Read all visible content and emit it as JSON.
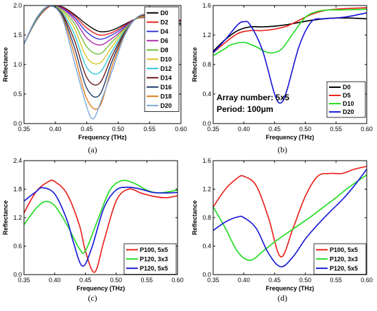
{
  "chart_data": [
    {
      "id": "a",
      "caption": "(a)",
      "type": "line",
      "xlabel": "Frequency (THz)",
      "ylabel": "Reflectance",
      "xlim": [
        0.35,
        0.6
      ],
      "ylim": [
        0,
        2
      ],
      "xticks": [
        "0.35",
        "0.40",
        "0.45",
        "0.50",
        "0.55",
        "0.60"
      ],
      "yticks": [
        "0.0",
        "0.5",
        "1.0",
        "1.5",
        "2.0"
      ],
      "legend_position": "top-right",
      "series": [
        {
          "name": "D0",
          "color": "#000000",
          "x": [
            0.35,
            0.37,
            0.39,
            0.41,
            0.43,
            0.45,
            0.47,
            0.49,
            0.51,
            0.53,
            0.55,
            0.57,
            0.6
          ],
          "y": [
            1.35,
            1.75,
            1.98,
            1.98,
            1.85,
            1.68,
            1.56,
            1.58,
            1.68,
            1.78,
            1.8,
            1.78,
            1.75
          ]
        },
        {
          "name": "D2",
          "color": "#e8231b",
          "x": [
            0.35,
            0.37,
            0.39,
            0.41,
            0.43,
            0.45,
            0.47,
            0.49,
            0.51,
            0.53,
            0.55,
            0.57,
            0.6
          ],
          "y": [
            1.35,
            1.75,
            1.98,
            1.97,
            1.83,
            1.62,
            1.5,
            1.54,
            1.66,
            1.78,
            1.8,
            1.78,
            1.75
          ]
        },
        {
          "name": "D4",
          "color": "#3a3ad6",
          "x": [
            0.35,
            0.37,
            0.39,
            0.41,
            0.43,
            0.45,
            0.47,
            0.49,
            0.51,
            0.53,
            0.55,
            0.57,
            0.6
          ],
          "y": [
            1.35,
            1.76,
            1.99,
            1.96,
            1.8,
            1.55,
            1.43,
            1.5,
            1.64,
            1.78,
            1.81,
            1.78,
            1.74
          ]
        },
        {
          "name": "D6",
          "color": "#b02aa8",
          "x": [
            0.35,
            0.37,
            0.39,
            0.41,
            0.43,
            0.45,
            0.47,
            0.49,
            0.51,
            0.53,
            0.55,
            0.57,
            0.6
          ],
          "y": [
            1.35,
            1.76,
            1.99,
            1.95,
            1.76,
            1.45,
            1.33,
            1.44,
            1.62,
            1.78,
            1.81,
            1.77,
            1.73
          ]
        },
        {
          "name": "D8",
          "color": "#6fbf3a",
          "x": [
            0.35,
            0.37,
            0.39,
            0.41,
            0.43,
            0.45,
            0.47,
            0.49,
            0.51,
            0.53,
            0.55,
            0.57,
            0.6
          ],
          "y": [
            1.35,
            1.76,
            1.99,
            1.93,
            1.7,
            1.3,
            1.18,
            1.38,
            1.6,
            1.78,
            1.82,
            1.76,
            1.72
          ]
        },
        {
          "name": "D10",
          "color": "#d8c42a",
          "x": [
            0.35,
            0.37,
            0.39,
            0.41,
            0.43,
            0.45,
            0.47,
            0.49,
            0.51,
            0.53,
            0.55,
            0.57,
            0.6
          ],
          "y": [
            1.35,
            1.77,
            1.99,
            1.91,
            1.62,
            1.12,
            1.02,
            1.3,
            1.58,
            1.78,
            1.82,
            1.76,
            1.71
          ]
        },
        {
          "name": "D12",
          "color": "#2ec8d8",
          "x": [
            0.35,
            0.37,
            0.39,
            0.41,
            0.43,
            0.45,
            0.47,
            0.49,
            0.51,
            0.53,
            0.55,
            0.57,
            0.6
          ],
          "y": [
            1.35,
            1.77,
            1.99,
            1.89,
            1.52,
            0.95,
            0.86,
            1.22,
            1.56,
            1.79,
            1.83,
            1.75,
            1.7
          ]
        },
        {
          "name": "D14",
          "color": "#6b1a1a",
          "x": [
            0.35,
            0.37,
            0.39,
            0.41,
            0.43,
            0.45,
            0.47,
            0.49,
            0.51,
            0.53,
            0.55,
            0.57,
            0.6
          ],
          "y": [
            1.35,
            1.78,
            1.99,
            1.87,
            1.42,
            0.78,
            0.68,
            1.14,
            1.54,
            1.79,
            1.83,
            1.74,
            1.69
          ]
        },
        {
          "name": "D16",
          "color": "#1f3a6e",
          "x": [
            0.35,
            0.37,
            0.39,
            0.41,
            0.43,
            0.45,
            0.47,
            0.49,
            0.51,
            0.53,
            0.55,
            0.57,
            0.6
          ],
          "y": [
            1.35,
            1.78,
            1.99,
            1.85,
            1.3,
            0.6,
            0.48,
            1.05,
            1.52,
            1.8,
            1.84,
            1.74,
            1.68
          ]
        },
        {
          "name": "D18",
          "color": "#e07b1a",
          "x": [
            0.35,
            0.37,
            0.39,
            0.41,
            0.43,
            0.45,
            0.47,
            0.49,
            0.51,
            0.53,
            0.55,
            0.57,
            0.6
          ],
          "y": [
            1.35,
            1.79,
            1.99,
            1.83,
            1.18,
            0.42,
            0.28,
            0.96,
            1.5,
            1.8,
            1.84,
            1.73,
            1.67
          ]
        },
        {
          "name": "D20",
          "color": "#7aa6dc",
          "x": [
            0.35,
            0.37,
            0.39,
            0.41,
            0.43,
            0.45,
            0.46,
            0.47,
            0.49,
            0.51,
            0.53,
            0.55,
            0.57,
            0.6
          ],
          "y": [
            1.35,
            1.79,
            1.99,
            1.81,
            1.05,
            0.28,
            0.08,
            0.3,
            0.88,
            1.48,
            1.8,
            1.85,
            1.72,
            1.66
          ]
        }
      ]
    },
    {
      "id": "b",
      "caption": "(b)",
      "type": "line",
      "xlabel": "Frequency (THz)",
      "ylabel": "Reflectance",
      "xlim": [
        0.35,
        0.6
      ],
      "ylim": [
        0,
        1.6
      ],
      "xticks": [
        "0.35",
        "0.40",
        "0.45",
        "0.50",
        "0.55",
        "0.60"
      ],
      "yticks": [
        "0.0",
        "0.4",
        "0.8",
        "1.2",
        "1.6"
      ],
      "legend_position": "bottom-right",
      "annotations": [
        "Array number: 5x5",
        "Period: 100μm"
      ],
      "series": [
        {
          "name": "D0",
          "color": "#000000",
          "x": [
            0.35,
            0.37,
            0.39,
            0.41,
            0.43,
            0.45,
            0.47,
            0.49,
            0.51,
            0.53,
            0.55,
            0.57,
            0.6
          ],
          "y": [
            0.98,
            1.14,
            1.26,
            1.31,
            1.31,
            1.32,
            1.34,
            1.37,
            1.4,
            1.42,
            1.43,
            1.43,
            1.42
          ]
        },
        {
          "name": "D5",
          "color": "#e8231b",
          "x": [
            0.35,
            0.37,
            0.39,
            0.41,
            0.43,
            0.45,
            0.47,
            0.49,
            0.51,
            0.53,
            0.55,
            0.57,
            0.6
          ],
          "y": [
            0.96,
            1.1,
            1.22,
            1.26,
            1.26,
            1.28,
            1.32,
            1.4,
            1.48,
            1.53,
            1.55,
            1.56,
            1.57
          ]
        },
        {
          "name": "D10",
          "color": "#22dd22",
          "x": [
            0.35,
            0.37,
            0.38,
            0.4,
            0.42,
            0.44,
            0.46,
            0.48,
            0.5,
            0.52,
            0.54,
            0.56,
            0.6
          ],
          "y": [
            0.92,
            1.02,
            1.07,
            1.1,
            1.04,
            0.96,
            1.0,
            1.22,
            1.44,
            1.52,
            1.54,
            1.54,
            1.55
          ]
        },
        {
          "name": "D20",
          "color": "#1a1ad6",
          "x": [
            0.35,
            0.37,
            0.39,
            0.4,
            0.41,
            0.43,
            0.45,
            0.46,
            0.47,
            0.49,
            0.51,
            0.53,
            0.55,
            0.57,
            0.6
          ],
          "y": [
            0.96,
            1.14,
            1.34,
            1.38,
            1.34,
            1.0,
            0.4,
            0.28,
            0.45,
            1.05,
            1.38,
            1.42,
            1.43,
            1.45,
            1.5
          ]
        }
      ]
    },
    {
      "id": "c",
      "caption": "(c)",
      "type": "line",
      "xlabel": "Frequency (THz)",
      "ylabel": "Reflectance",
      "xlim": [
        0.35,
        0.6
      ],
      "ylim": [
        0,
        2.4
      ],
      "xticks": [
        "0.35",
        "0.40",
        "0.45",
        "0.50",
        "0.55",
        "0.60"
      ],
      "yticks": [
        "0.0",
        "0.6",
        "1.2",
        "1.8",
        "2.4"
      ],
      "legend_position": "bottom-right",
      "series": [
        {
          "name": "P100, 5x5",
          "color": "#e8231b",
          "x": [
            0.35,
            0.37,
            0.39,
            0.4,
            0.42,
            0.44,
            0.45,
            0.465,
            0.48,
            0.5,
            0.52,
            0.54,
            0.56,
            0.58,
            0.6
          ],
          "y": [
            1.3,
            1.75,
            1.96,
            1.96,
            1.7,
            1.05,
            0.5,
            0.05,
            0.7,
            1.55,
            1.8,
            1.72,
            1.65,
            1.62,
            1.66
          ]
        },
        {
          "name": "P120, 3x3",
          "color": "#22dd22",
          "x": [
            0.35,
            0.37,
            0.385,
            0.4,
            0.42,
            0.44,
            0.45,
            0.47,
            0.49,
            0.51,
            0.53,
            0.55,
            0.57,
            0.6
          ],
          "y": [
            1.05,
            1.4,
            1.54,
            1.45,
            1.05,
            0.55,
            0.5,
            1.15,
            1.78,
            1.98,
            1.92,
            1.78,
            1.72,
            1.78
          ]
        },
        {
          "name": "P120, 5x5",
          "color": "#1a1ad6",
          "x": [
            0.35,
            0.37,
            0.38,
            0.4,
            0.42,
            0.43,
            0.445,
            0.46,
            0.48,
            0.5,
            0.52,
            0.54,
            0.56,
            0.58,
            0.6
          ],
          "y": [
            1.55,
            1.75,
            1.83,
            1.7,
            1.15,
            0.7,
            0.18,
            0.55,
            1.4,
            1.78,
            1.84,
            1.8,
            1.73,
            1.72,
            1.73
          ]
        }
      ]
    },
    {
      "id": "d",
      "caption": "(d)",
      "type": "line",
      "xlabel": "Frequency (THz)",
      "ylabel": "Reflectance",
      "xlim": [
        0.35,
        0.6
      ],
      "ylim": [
        0,
        1.6
      ],
      "xticks": [
        "0.35",
        "0.40",
        "0.45",
        "0.50",
        "0.55",
        "0.60"
      ],
      "yticks": [
        "0.0",
        "0.4",
        "0.8",
        "1.2",
        "1.6"
      ],
      "legend_position": "bottom-right",
      "series": [
        {
          "name": "P100, 5x5",
          "color": "#e8231b",
          "x": [
            0.35,
            0.37,
            0.39,
            0.4,
            0.42,
            0.44,
            0.46,
            0.48,
            0.5,
            0.52,
            0.54,
            0.56,
            0.58,
            0.6
          ],
          "y": [
            0.95,
            1.2,
            1.36,
            1.38,
            1.25,
            0.8,
            0.25,
            0.65,
            1.1,
            1.38,
            1.42,
            1.42,
            1.48,
            1.52
          ]
        },
        {
          "name": "P120, 3x3",
          "color": "#22dd22",
          "x": [
            0.35,
            0.37,
            0.39,
            0.41,
            0.43,
            0.45,
            0.47,
            0.49,
            0.51,
            0.53,
            0.55,
            0.57,
            0.6
          ],
          "y": [
            0.95,
            0.65,
            0.32,
            0.2,
            0.32,
            0.46,
            0.58,
            0.7,
            0.82,
            0.95,
            1.08,
            1.22,
            1.4
          ]
        },
        {
          "name": "P120, 5x5",
          "color": "#1a1ad6",
          "x": [
            0.35,
            0.37,
            0.39,
            0.4,
            0.42,
            0.44,
            0.46,
            0.48,
            0.5,
            0.52,
            0.54,
            0.56,
            0.58,
            0.6
          ],
          "y": [
            0.62,
            0.74,
            0.81,
            0.8,
            0.65,
            0.3,
            0.11,
            0.25,
            0.5,
            0.7,
            0.88,
            1.05,
            1.25,
            1.48
          ]
        }
      ]
    }
  ]
}
